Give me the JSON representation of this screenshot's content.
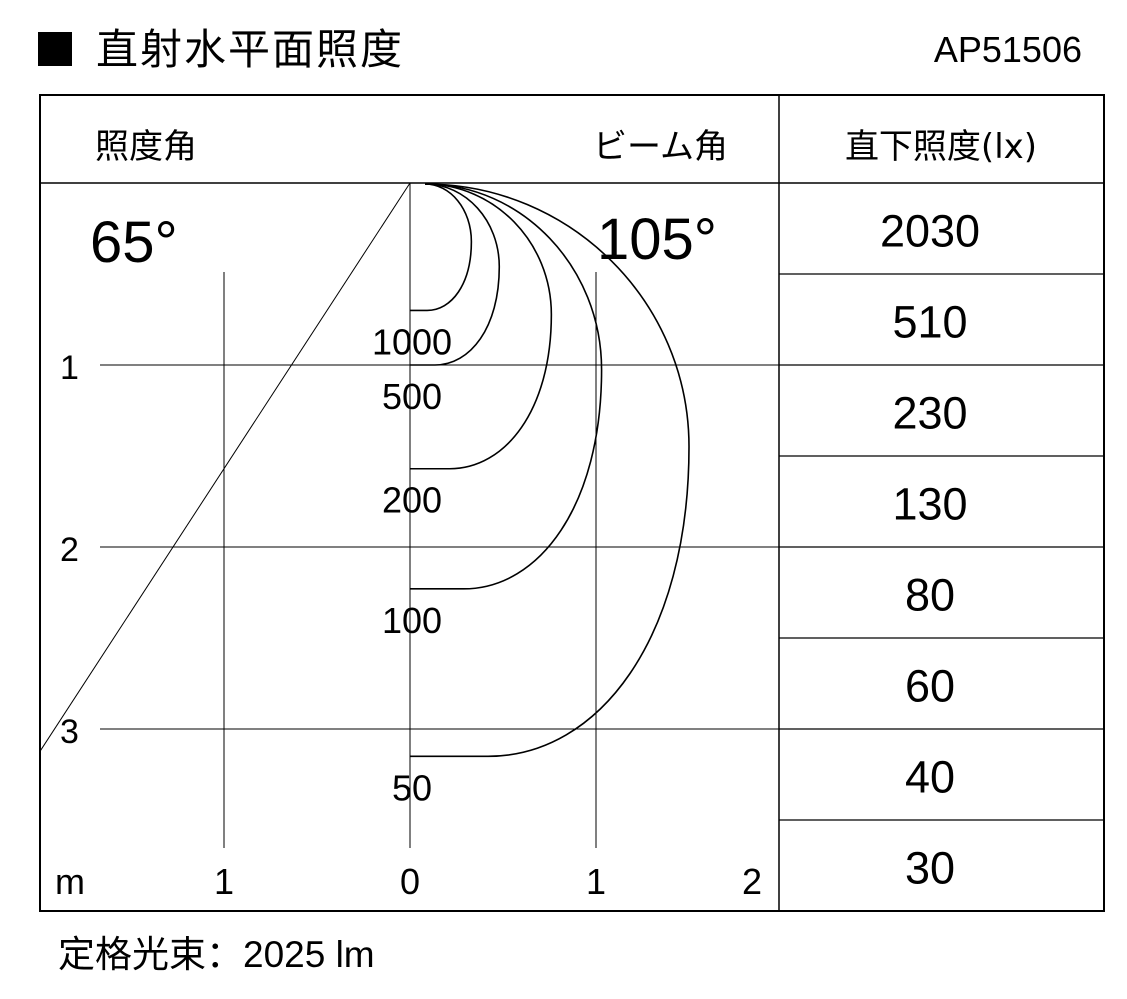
{
  "header": {
    "title": "直射水平面照度",
    "model": "AP51506"
  },
  "footer": {
    "rated_flux_label": "定格光束：",
    "rated_flux_value": "2025 lm"
  },
  "chart_data": {
    "type": "illuminance-distribution",
    "title": "直射水平面照度",
    "illuminance_angle_label": "照度角",
    "illuminance_angle": "65°",
    "beam_angle_label": "ビーム角",
    "beam_angle": "105°",
    "unit": "m",
    "distance_ticks": [
      "1",
      "2",
      "3"
    ],
    "radius_ticks": [
      "1",
      "0",
      "1",
      "2"
    ],
    "xlim": [
      -1,
      2
    ],
    "ylim": [
      0,
      3.7
    ],
    "contours": [
      {
        "lux": 1000,
        "label": "1000",
        "depth": 0.7,
        "max_radius": 0.33
      },
      {
        "lux": 500,
        "label": "500",
        "depth": 1.0,
        "max_radius": 0.48
      },
      {
        "lux": 200,
        "label": "200",
        "depth": 1.57,
        "max_radius": 0.76
      },
      {
        "lux": 100,
        "label": "100",
        "depth": 2.23,
        "max_radius": 1.03
      },
      {
        "lux": 50,
        "label": "50",
        "depth": 3.15,
        "max_radius": 1.5
      }
    ],
    "direct_illuminance": {
      "header": "直下照度(lx)",
      "values": [
        "2030",
        "510",
        "230",
        "130",
        "80",
        "60",
        "40",
        "30"
      ]
    }
  }
}
